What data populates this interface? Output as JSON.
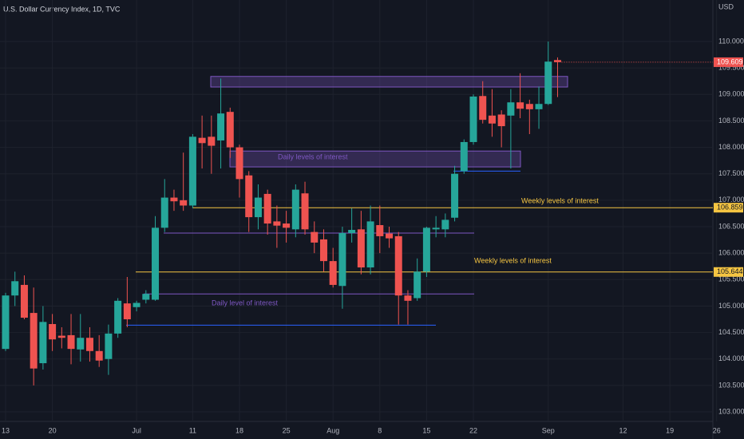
{
  "chart_data": {
    "type": "candlestick",
    "title": "U.S. Dollar Currency Index, 1D, TVC",
    "currency": "USD",
    "categories": [
      "13",
      null,
      null,
      null,
      null,
      "20",
      null,
      null,
      null,
      null,
      null,
      null,
      null,
      null,
      "Jul",
      null,
      null,
      null,
      null,
      null,
      "11",
      null,
      null,
      null,
      null,
      "18",
      null,
      null,
      null,
      null,
      "25",
      null,
      null,
      null,
      null,
      "Aug",
      null,
      null,
      null,
      null,
      "8",
      null,
      null,
      null,
      null,
      "15",
      null,
      null,
      null,
      null,
      "22",
      null,
      null,
      null,
      null,
      null,
      null,
      null,
      "Sep",
      null
    ],
    "future_categories": [
      "12",
      "19",
      "26"
    ],
    "open": [
      104.19,
      105.2,
      105.4,
      104.87,
      103.92,
      104.66,
      104.44,
      104.45,
      104.18,
      104.4,
      104.15,
      104.0,
      104.48,
      105.05,
      104.98,
      105.12,
      105.12,
      106.48,
      107.05,
      107.0,
      106.9,
      108.18,
      108.2,
      108.13,
      108.67,
      108.0,
      107.47,
      106.68,
      107.12,
      106.6,
      106.56,
      106.45,
      107.13,
      106.4,
      106.26,
      105.85,
      105.38,
      106.38,
      106.45,
      105.73,
      106.53,
      106.37,
      106.32,
      105.2,
      105.15,
      105.65,
      106.45,
      106.45,
      106.67,
      107.55,
      108.1,
      108.97,
      108.6,
      108.62,
      108.6,
      108.85,
      108.82,
      108.72,
      108.82,
      109.65
    ],
    "high": [
      105.25,
      105.65,
      105.58,
      105.35,
      105.0,
      104.85,
      104.6,
      104.85,
      104.85,
      104.6,
      104.45,
      104.65,
      105.15,
      105.55,
      105.1,
      105.3,
      106.7,
      107.4,
      107.2,
      107.9,
      108.25,
      108.6,
      108.6,
      109.3,
      108.75,
      108.05,
      107.55,
      107.3,
      107.2,
      106.9,
      106.8,
      107.3,
      107.35,
      106.6,
      106.45,
      106.1,
      106.5,
      106.85,
      106.8,
      106.9,
      106.9,
      106.5,
      106.4,
      105.3,
      105.9,
      106.5,
      106.7,
      106.75,
      107.65,
      108.15,
      109.0,
      109.25,
      109.1,
      108.7,
      109.1,
      109.4,
      108.9,
      109.15,
      110.0,
      109.7
    ],
    "low": [
      104.15,
      105.0,
      104.75,
      103.5,
      103.8,
      104.15,
      104.2,
      103.9,
      103.95,
      103.95,
      103.85,
      103.7,
      104.4,
      104.6,
      104.9,
      105.05,
      105.1,
      106.4,
      106.8,
      106.8,
      106.85,
      107.6,
      107.5,
      107.6,
      107.8,
      107.05,
      106.4,
      106.45,
      106.35,
      106.1,
      106.2,
      106.3,
      106.35,
      106.0,
      105.65,
      105.35,
      104.95,
      106.2,
      105.6,
      105.6,
      106.0,
      106.1,
      104.65,
      104.65,
      105.1,
      105.55,
      106.3,
      106.3,
      106.6,
      107.5,
      108.05,
      108.45,
      108.2,
      108.0,
      107.6,
      108.55,
      108.25,
      108.35,
      108.8,
      108.95
    ],
    "close": [
      105.2,
      105.47,
      104.78,
      103.82,
      104.7,
      104.37,
      104.4,
      104.19,
      104.4,
      104.15,
      103.97,
      104.48,
      105.1,
      104.75,
      105.06,
      105.23,
      106.48,
      107.05,
      106.98,
      106.9,
      108.2,
      108.08,
      108.03,
      108.64,
      108.0,
      107.4,
      106.68,
      107.05,
      106.56,
      106.52,
      106.48,
      107.2,
      106.45,
      106.2,
      105.85,
      105.4,
      106.38,
      106.44,
      105.73,
      106.6,
      106.32,
      106.28,
      105.2,
      105.1,
      105.65,
      106.48,
      106.48,
      106.63,
      107.5,
      108.1,
      108.96,
      108.52,
      108.45,
      108.4,
      108.85,
      108.73,
      108.72,
      108.82,
      109.62,
      109.609
    ],
    "up_color": "#26a69a",
    "down_color": "#ef5350",
    "ylim": [
      102.85,
      110.6
    ],
    "yticks": [
      {
        "value": 103,
        "label": "103.000"
      },
      {
        "value": 103.5,
        "label": "103.500"
      },
      {
        "value": 104,
        "label": "104.000"
      },
      {
        "value": 104.5,
        "label": "104.500"
      },
      {
        "value": 105,
        "label": "105.000"
      },
      {
        "value": 105.5,
        "label": "105.500"
      },
      {
        "value": 106,
        "label": "106.000"
      },
      {
        "value": 106.5,
        "label": "106.500"
      },
      {
        "value": 107,
        "label": "107.000"
      },
      {
        "value": 107.5,
        "label": "107.500"
      },
      {
        "value": 108,
        "label": "108.000"
      },
      {
        "value": 108.5,
        "label": "108.500"
      },
      {
        "value": 109,
        "label": "109.000"
      },
      {
        "value": 109.5,
        "label": "109.500"
      },
      {
        "value": 110,
        "label": "110.000"
      }
    ],
    "grid": true,
    "zones": [
      {
        "low": 109.14,
        "high": 109.34,
        "color": "#7e57c2"
      },
      {
        "low": 107.63,
        "high": 107.93,
        "color": "#7e57c2",
        "label": "Daily levels of interest"
      }
    ],
    "lines": [
      {
        "value": 107.55,
        "color": "#2962ff"
      },
      {
        "value": 106.38,
        "color": "#7e57c2"
      },
      {
        "value": 105.23,
        "color": "#7e57c2",
        "label": "Daily level of interest"
      },
      {
        "value": 104.64,
        "color": "#2962ff"
      },
      {
        "value": 106.859,
        "color": "#f5c542",
        "label": "Weekly levels of interest",
        "price_label": true
      },
      {
        "value": 105.644,
        "color": "#f5c542",
        "label": "Weekly levels of interest",
        "price_label": true
      }
    ]
  }
}
